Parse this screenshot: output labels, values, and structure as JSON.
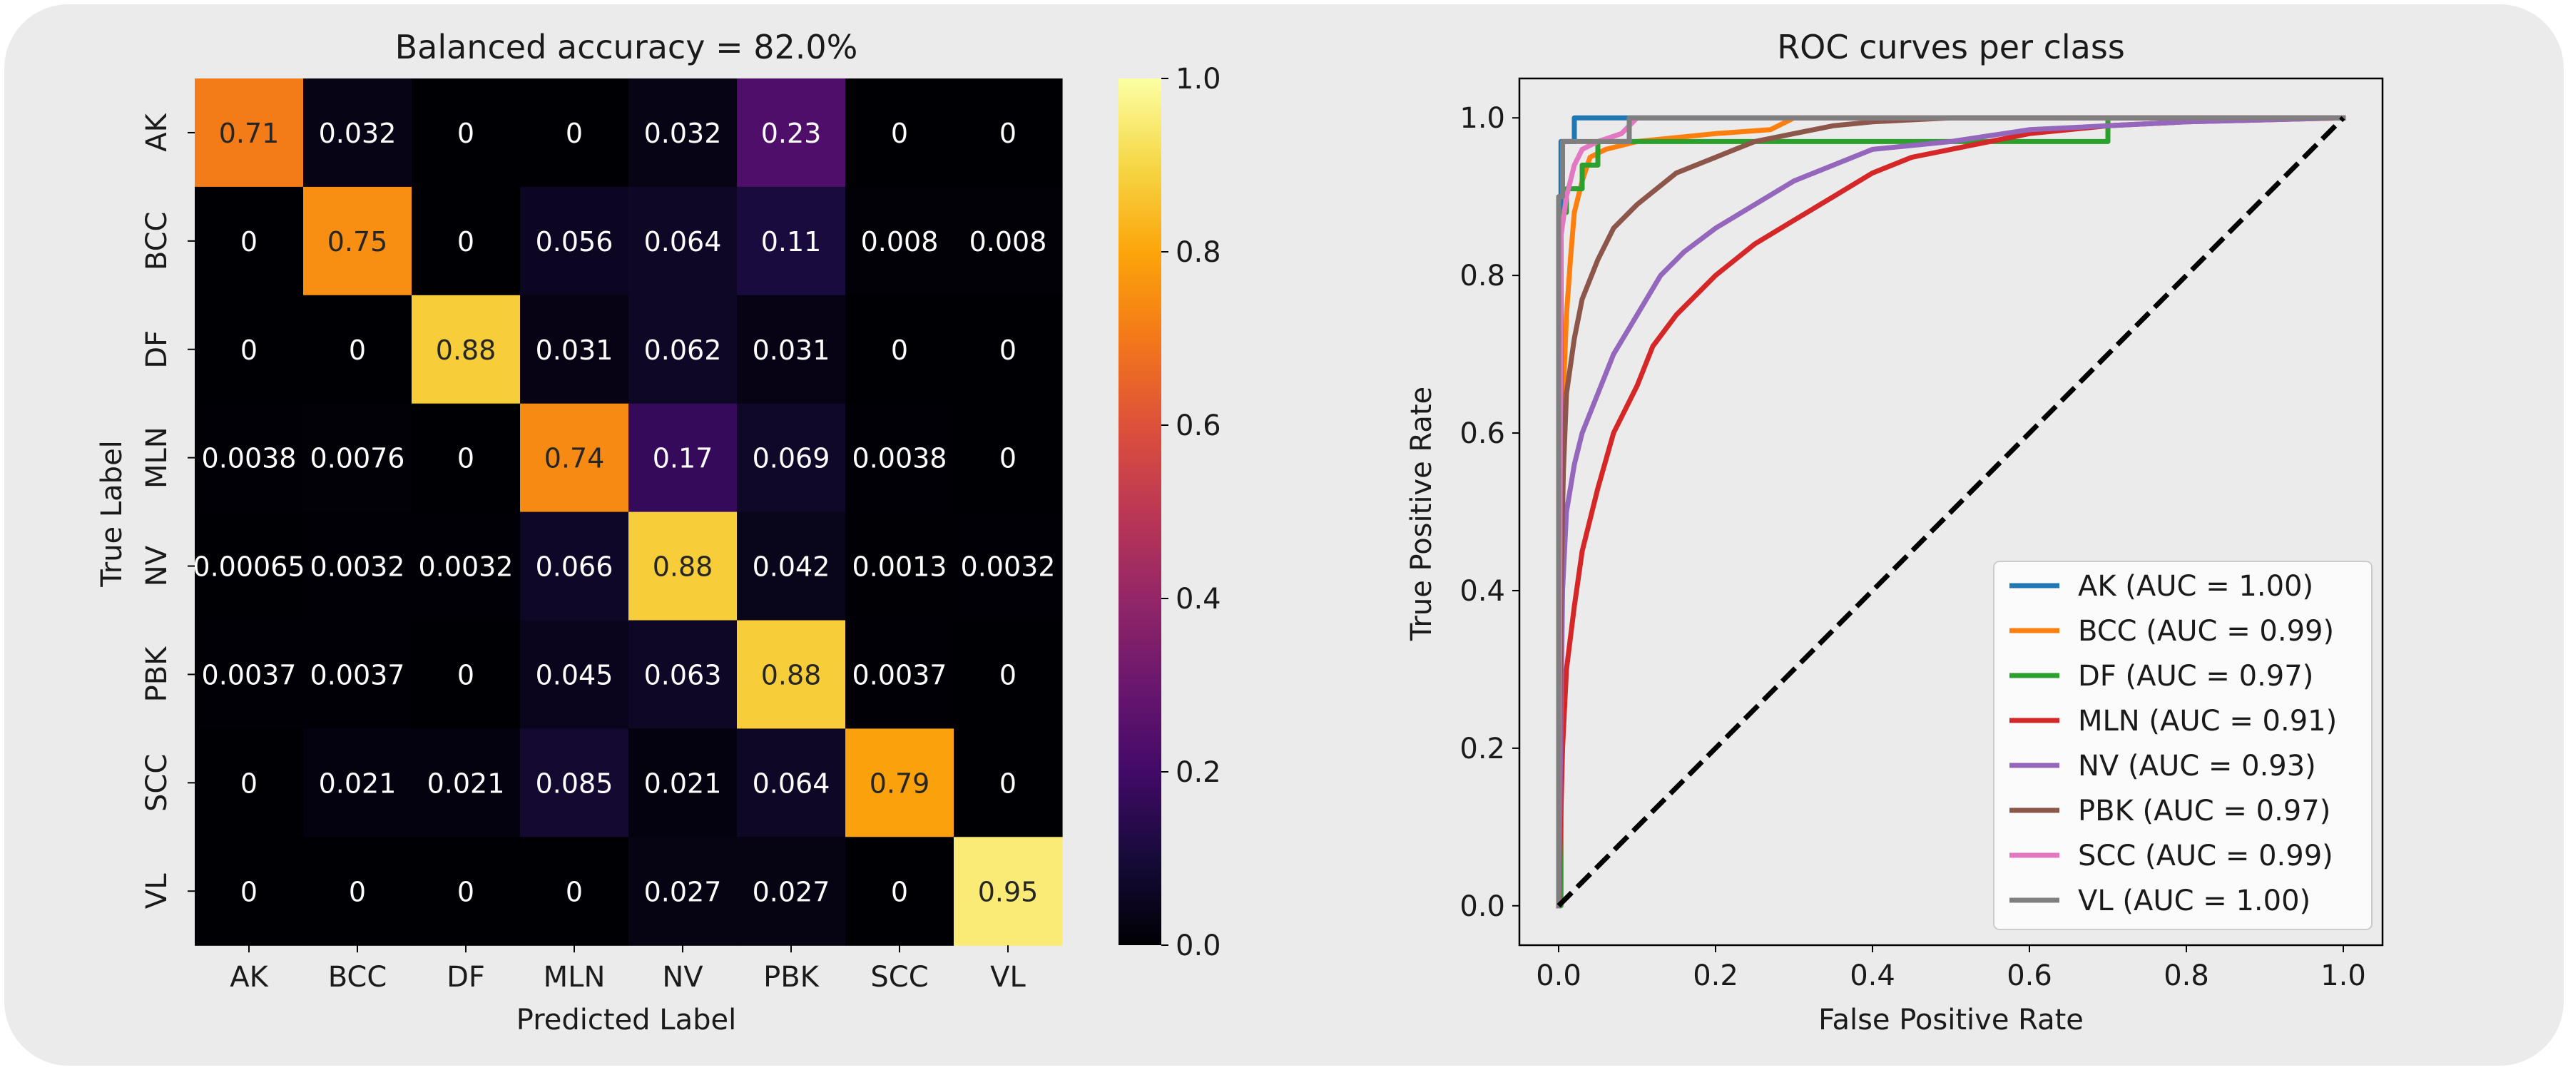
{
  "chart_data": [
    {
      "type": "heatmap",
      "title": "Balanced accuracy = 82.0%",
      "xlabel": "Predicted Label",
      "ylabel": "True Label",
      "x_categories": [
        "AK",
        "BCC",
        "DF",
        "MLN",
        "NV",
        "PBK",
        "SCC",
        "VL"
      ],
      "y_categories": [
        "AK",
        "BCC",
        "DF",
        "MLN",
        "NV",
        "PBK",
        "SCC",
        "VL"
      ],
      "values": [
        [
          0.71,
          0.032,
          0,
          0,
          0.032,
          0.23,
          0,
          0
        ],
        [
          0,
          0.75,
          0,
          0.056,
          0.064,
          0.11,
          0.008,
          0.008
        ],
        [
          0,
          0,
          0.88,
          0.031,
          0.062,
          0.031,
          0,
          0
        ],
        [
          0.0038,
          0.0076,
          0,
          0.74,
          0.17,
          0.069,
          0.0038,
          0
        ],
        [
          0.00065,
          0.0032,
          0.0032,
          0.066,
          0.88,
          0.042,
          0.0013,
          0.0032
        ],
        [
          0.0037,
          0.0037,
          0,
          0.045,
          0.063,
          0.88,
          0.0037,
          0
        ],
        [
          0,
          0.021,
          0.021,
          0.085,
          0.021,
          0.064,
          0.79,
          0
        ],
        [
          0,
          0,
          0,
          0,
          0.027,
          0.027,
          0,
          0.95
        ]
      ],
      "cell_labels": [
        [
          "0.71",
          "0.032",
          "0",
          "0",
          "0.032",
          "0.23",
          "0",
          "0"
        ],
        [
          "0",
          "0.75",
          "0",
          "0.056",
          "0.064",
          "0.11",
          "0.008",
          "0.008"
        ],
        [
          "0",
          "0",
          "0.88",
          "0.031",
          "0.062",
          "0.031",
          "0",
          "0"
        ],
        [
          "0.0038",
          "0.0076",
          "0",
          "0.74",
          "0.17",
          "0.069",
          "0.0038",
          "0"
        ],
        [
          "0.00065",
          "0.0032",
          "0.0032",
          "0.066",
          "0.88",
          "0.042",
          "0.0013",
          "0.0032"
        ],
        [
          "0.0037",
          "0.0037",
          "0",
          "0.045",
          "0.063",
          "0.88",
          "0.0037",
          "0"
        ],
        [
          "0",
          "0.021",
          "0.021",
          "0.085",
          "0.021",
          "0.064",
          "0.79",
          "0"
        ],
        [
          "0",
          "0",
          "0",
          "0",
          "0.027",
          "0.027",
          "0",
          "0.95"
        ]
      ],
      "colormap": "inferno",
      "colorbar": {
        "range": [
          0,
          1
        ],
        "ticks": [
          "0.0",
          "0.2",
          "0.4",
          "0.6",
          "0.8",
          "1.0"
        ]
      }
    },
    {
      "type": "line",
      "title": "ROC curves per class",
      "xlabel": "False Positive Rate",
      "ylabel": "True Positive Rate",
      "xlim": [
        -0.05,
        1.05
      ],
      "ylim": [
        -0.05,
        1.05
      ],
      "xticks": [
        "0.0",
        "0.2",
        "0.4",
        "0.6",
        "0.8",
        "1.0"
      ],
      "yticks": [
        "0.0",
        "0.2",
        "0.4",
        "0.6",
        "0.8",
        "1.0"
      ],
      "grid": false,
      "legend_position": "lower-right",
      "series": [
        {
          "name": "AK (AUC = 1.00)",
          "color": "#1f77b4",
          "x": [
            0,
            0,
            0.003,
            0.003,
            0.02,
            0.02,
            1
          ],
          "y": [
            0,
            0.58,
            0.58,
            0.97,
            0.97,
            1.0,
            1.0
          ]
        },
        {
          "name": "BCC (AUC = 0.99)",
          "color": "#ff7f0e",
          "x": [
            0,
            0.003,
            0.006,
            0.01,
            0.015,
            0.02,
            0.03,
            0.04,
            0.06,
            0.1,
            0.15,
            0.2,
            0.27,
            0.3,
            1
          ],
          "y": [
            0,
            0.5,
            0.65,
            0.75,
            0.82,
            0.88,
            0.92,
            0.95,
            0.96,
            0.97,
            0.975,
            0.98,
            0.985,
            1.0,
            1.0
          ]
        },
        {
          "name": "DF (AUC = 0.97)",
          "color": "#2ca02c",
          "x": [
            0,
            0.003,
            0.003,
            0.01,
            0.01,
            0.03,
            0.03,
            0.05,
            0.05,
            0.7,
            0.7,
            1
          ],
          "y": [
            0,
            0,
            0.88,
            0.88,
            0.91,
            0.91,
            0.94,
            0.94,
            0.97,
            0.97,
            1.0,
            1.0
          ]
        },
        {
          "name": "MLN (AUC = 0.91)",
          "color": "#d62728",
          "x": [
            0,
            0.005,
            0.01,
            0.02,
            0.03,
            0.05,
            0.07,
            0.1,
            0.12,
            0.15,
            0.2,
            0.25,
            0.3,
            0.35,
            0.4,
            0.45,
            0.5,
            0.6,
            0.7,
            0.8,
            1
          ],
          "y": [
            0,
            0.2,
            0.3,
            0.38,
            0.45,
            0.53,
            0.6,
            0.66,
            0.71,
            0.75,
            0.8,
            0.84,
            0.87,
            0.9,
            0.93,
            0.95,
            0.96,
            0.98,
            0.99,
            0.995,
            1.0
          ]
        },
        {
          "name": "NV (AUC = 0.93)",
          "color": "#9467bd",
          "x": [
            0,
            0.005,
            0.01,
            0.02,
            0.03,
            0.05,
            0.07,
            0.1,
            0.13,
            0.16,
            0.2,
            0.25,
            0.3,
            0.35,
            0.4,
            0.5,
            0.6,
            0.7,
            0.8,
            1
          ],
          "y": [
            0,
            0.4,
            0.5,
            0.56,
            0.6,
            0.65,
            0.7,
            0.75,
            0.8,
            0.83,
            0.86,
            0.89,
            0.92,
            0.94,
            0.96,
            0.97,
            0.985,
            0.99,
            0.995,
            1.0
          ]
        },
        {
          "name": "PBK (AUC = 0.97)",
          "color": "#8c564b",
          "x": [
            0,
            0.003,
            0.006,
            0.01,
            0.02,
            0.03,
            0.05,
            0.07,
            0.1,
            0.15,
            0.2,
            0.25,
            0.3,
            0.35,
            0.4,
            0.5,
            1
          ],
          "y": [
            0,
            0.4,
            0.55,
            0.65,
            0.72,
            0.77,
            0.82,
            0.86,
            0.89,
            0.93,
            0.95,
            0.97,
            0.98,
            0.99,
            0.995,
            1.0,
            1.0
          ]
        },
        {
          "name": "SCC (AUC = 0.99)",
          "color": "#e377c2",
          "x": [
            0,
            0.003,
            0.01,
            0.02,
            0.03,
            0.05,
            0.08,
            0.1,
            1
          ],
          "y": [
            0,
            0.85,
            0.9,
            0.94,
            0.96,
            0.97,
            0.98,
            1.0,
            1.0
          ]
        },
        {
          "name": "VL (AUC = 1.00)",
          "color": "#7f7f7f",
          "x": [
            0,
            0,
            0.005,
            0.005,
            0.09,
            0.09,
            1
          ],
          "y": [
            0,
            0.9,
            0.9,
            0.97,
            0.97,
            1.0,
            1.0
          ]
        }
      ],
      "reference_line": {
        "x": [
          0,
          1
        ],
        "y": [
          0,
          1
        ],
        "style": "dashed",
        "color": "#000000"
      }
    }
  ]
}
